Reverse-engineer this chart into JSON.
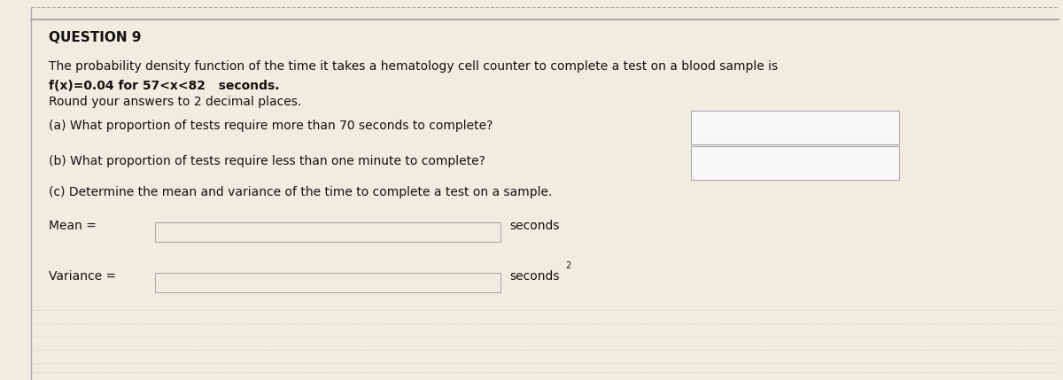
{
  "title": "QUESTION 9",
  "bg_color": "#f0ede0",
  "text_color": "#111111",
  "line1": "The probability density function of the time it takes a hematology cell counter to complete a test on a blood sample is",
  "line2_normal": "f(x)=0.04 for 57<x<82",
  "line2_bold": "  seconds.",
  "line3": "Round your answers to 2 decimal places.",
  "part_a": "(a) What proportion of tests require more than 70 seconds to complete?",
  "part_b": "(b) What proportion of tests require less than one minute to complete?",
  "part_c": "(c) Determine the mean and variance of the time to complete a test on a sample.",
  "mean_label": "Mean =",
  "mean_unit": "seconds",
  "variance_label": "Variance =",
  "variance_unit": "seconds",
  "variance_superscript": "2",
  "title_fontsize": 11,
  "body_fontsize": 10,
  "label_fontsize": 10,
  "dashed_line_color": "#aaaaaa",
  "solid_line_color": "#999999",
  "box_color": "#cccccc"
}
